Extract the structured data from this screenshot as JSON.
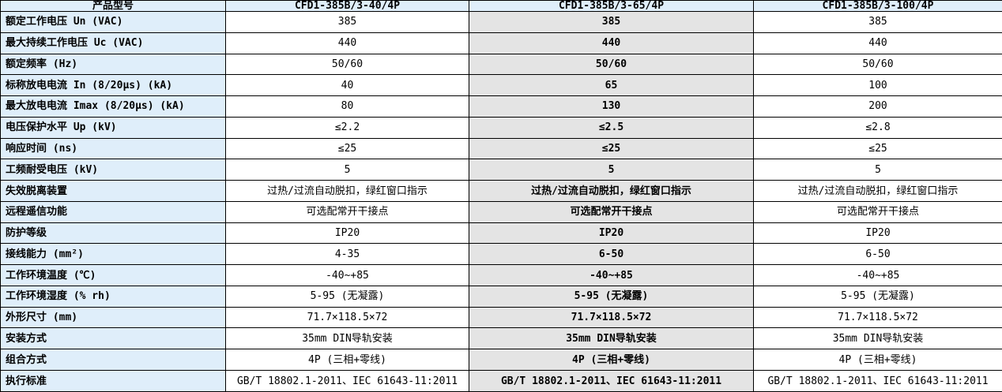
{
  "colors": {
    "header_bg": "#dfeefa",
    "label_column_bg": "#dfeefa",
    "highlight_column_bg": "#e4e4e4",
    "cell_bg": "#ffffff",
    "border": "#000000",
    "text": "#000000"
  },
  "table": {
    "columns": [
      "产品型号",
      "CFD1-385B/3-40/4P",
      "CFD1-385B/3-65/4P",
      "CFD1-385B/3-100/4P"
    ],
    "highlight_column_index": 1,
    "rows": [
      {
        "label": "额定工作电压 Un (VAC)",
        "values": [
          "385",
          "385",
          "385"
        ]
      },
      {
        "label": "最大持续工作电压 Uc (VAC)",
        "values": [
          "440",
          "440",
          "440"
        ]
      },
      {
        "label": "额定频率 (Hz)",
        "values": [
          "50/60",
          "50/60",
          "50/60"
        ]
      },
      {
        "label": "标称放电电流 In (8/20μs) (kA)",
        "values": [
          "40",
          "65",
          "100"
        ]
      },
      {
        "label": "最大放电电流 Imax (8/20μs) (kA)",
        "values": [
          "80",
          "130",
          "200"
        ]
      },
      {
        "label": "电压保护水平 Up (kV)",
        "values": [
          "≤2.2",
          "≤2.5",
          "≤2.8"
        ]
      },
      {
        "label": "响应时间 (ns)",
        "values": [
          "≤25",
          "≤25",
          "≤25"
        ]
      },
      {
        "label": "工频耐受电压 (kV)",
        "values": [
          "5",
          "5",
          "5"
        ]
      },
      {
        "label": "失效脱离装置",
        "values": [
          "过热/过流自动脱扣，绿红窗口指示",
          "过热/过流自动脱扣，绿红窗口指示",
          "过热/过流自动脱扣，绿红窗口指示"
        ]
      },
      {
        "label": "远程遥信功能",
        "values": [
          "可选配常开干接点",
          "可选配常开干接点",
          "可选配常开干接点"
        ]
      },
      {
        "label": "防护等级",
        "values": [
          "IP20",
          "IP20",
          "IP20"
        ]
      },
      {
        "label": "接线能力 (mm²)",
        "values": [
          "4-35",
          "6-50",
          "6-50"
        ]
      },
      {
        "label": "工作环境温度 (℃)",
        "values": [
          "-40~+85",
          "-40~+85",
          "-40~+85"
        ]
      },
      {
        "label": "工作环境湿度 (% rh)",
        "values": [
          "5-95 (无凝露)",
          "5-95 (无凝露)",
          "5-95 (无凝露)"
        ]
      },
      {
        "label": "外形尺寸 (mm)",
        "values": [
          "71.7×118.5×72",
          "71.7×118.5×72",
          "71.7×118.5×72"
        ]
      },
      {
        "label": "安装方式",
        "values": [
          "35mm DIN导轨安装",
          "35mm DIN导轨安装",
          "35mm DIN导轨安装"
        ]
      },
      {
        "label": "组合方式",
        "values": [
          "4P (三相+零线)",
          "4P (三相+零线)",
          "4P (三相+零线)"
        ]
      },
      {
        "label": "执行标准",
        "values": [
          "GB/T 18802.1-2011、IEC 61643-11:2011",
          "GB/T 18802.1-2011、IEC 61643-11:2011",
          "GB/T 18802.1-2011、IEC 61643-11:2011"
        ]
      }
    ]
  }
}
